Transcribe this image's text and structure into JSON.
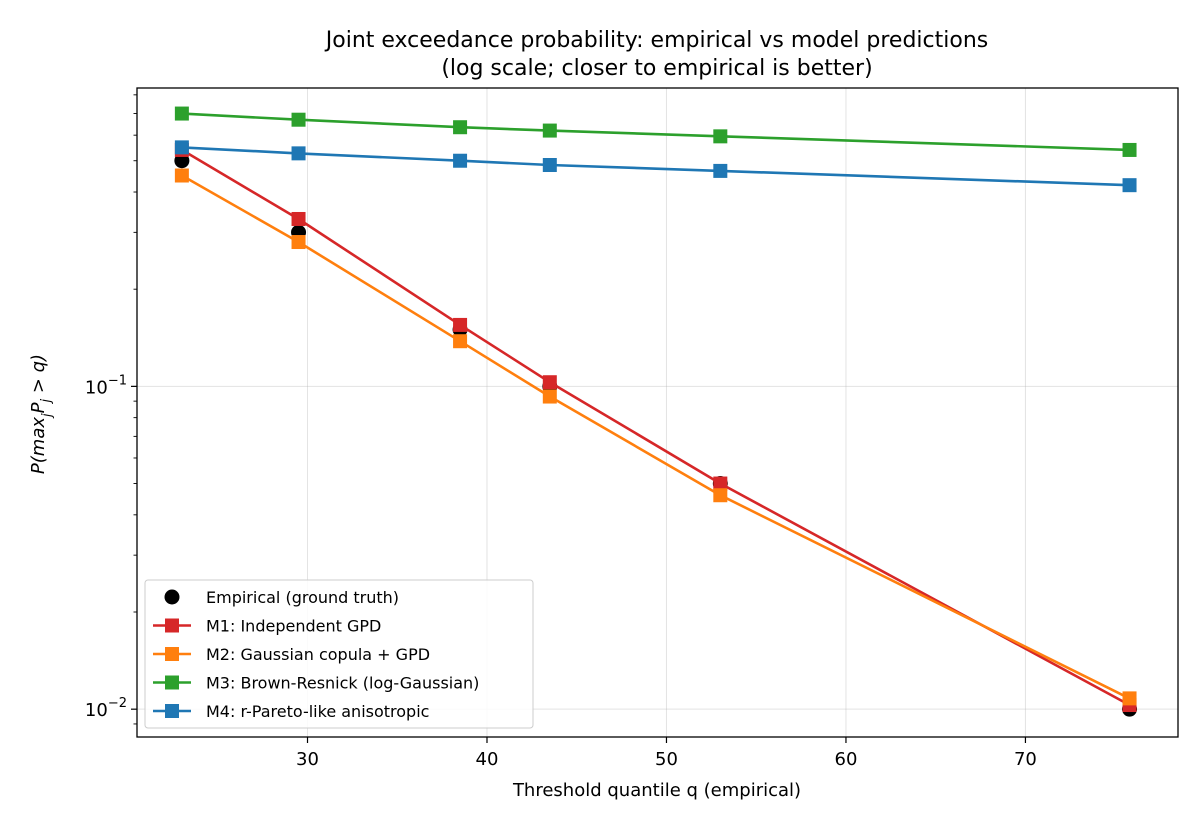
{
  "chart_data": {
    "type": "line",
    "title": "Joint exceedance probability: empirical vs model predictions",
    "subtitle": "(log scale; closer to empirical is better)",
    "xlabel": "Threshold quantile q (empirical)",
    "ylabel": "P(max_j P_j > q)",
    "ylabel_parts": {
      "pre": "P(max",
      "sub": "j",
      "var": "P",
      "var_sub": "j",
      "post": " > q)"
    },
    "xscale": "linear",
    "yscale": "log",
    "xlim": [
      20.5,
      78.5
    ],
    "ylim": [
      0.0082,
      0.84
    ],
    "xticks": [
      30,
      40,
      50,
      60,
      70
    ],
    "xtick_labels": [
      "30",
      "40",
      "50",
      "60",
      "70"
    ],
    "yticks": [
      0.01,
      0.1
    ],
    "ytick_labels": [
      {
        "base": "10",
        "exp": "−2"
      },
      {
        "base": "10",
        "exp": "−1"
      }
    ],
    "grid": true,
    "legend_position": "lower-left",
    "x": [
      23.0,
      29.5,
      38.5,
      43.5,
      53.0,
      75.8
    ],
    "series": [
      {
        "name": "Empirical (ground truth)",
        "color": "#000000",
        "marker": "circle",
        "line": false,
        "values": [
          0.5,
          0.3,
          0.15,
          0.1,
          0.05,
          0.01
        ]
      },
      {
        "name": "M1: Independent GPD",
        "color": "#d62728",
        "marker": "square",
        "line": true,
        "values": [
          0.54,
          0.33,
          0.155,
          0.103,
          0.05,
          0.0103
        ]
      },
      {
        "name": "M2: Gaussian copula + GPD",
        "color": "#ff7f0e",
        "marker": "square",
        "line": true,
        "values": [
          0.45,
          0.28,
          0.138,
          0.093,
          0.046,
          0.0108
        ]
      },
      {
        "name": "M3: Brown-Resnick (log-Gaussian)",
        "color": "#2ca02c",
        "marker": "square",
        "line": true,
        "values": [
          0.7,
          0.67,
          0.635,
          0.62,
          0.595,
          0.54
        ]
      },
      {
        "name": "M4: r-Pareto-like anisotropic",
        "color": "#1f77b4",
        "marker": "square",
        "line": true,
        "values": [
          0.55,
          0.527,
          0.5,
          0.485,
          0.465,
          0.42
        ]
      }
    ]
  }
}
